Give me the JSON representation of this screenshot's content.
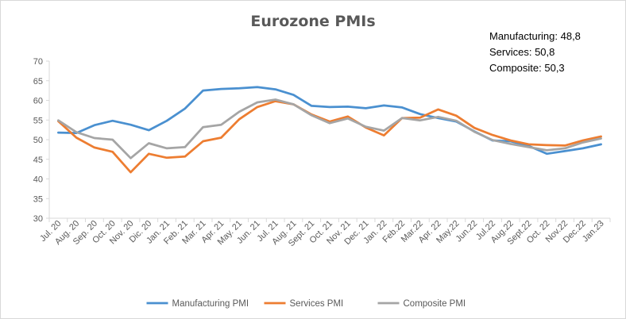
{
  "chart_data": {
    "type": "line",
    "title": "Eurozone PMIs",
    "xlabel": "",
    "ylabel": "",
    "ylim": [
      30,
      70
    ],
    "yticks": [
      30,
      35,
      40,
      45,
      50,
      55,
      60,
      65,
      70
    ],
    "grid": false,
    "legend_position": "bottom",
    "categories": [
      "Jul. 20",
      "Aug. 20",
      "Sep. 20",
      "Oct. 20",
      "Nov. 20",
      "Dic. 20",
      "Jan. 21",
      "Feb. 21",
      "Mar. 21",
      "Apr. 21",
      "May. 21",
      "Jun. 21",
      "Jul. 21",
      "Aug. 21",
      "Sept. 21",
      "Oct. 21",
      "Nov. 21",
      "Dec. 21",
      "Jan. 22",
      "Feb.22",
      "Mar.22",
      "Apr. 22",
      "May.22",
      "Jun.22",
      "Jul.22",
      "Aug.22",
      "Sept.22",
      "Oct. 22",
      "Nov.22",
      "Dec.22",
      "Jan.23"
    ],
    "series": [
      {
        "name": "Manufacturing PMI",
        "color": "#4a90d0",
        "values": [
          51.8,
          51.7,
          53.7,
          54.8,
          53.8,
          52.4,
          54.8,
          57.9,
          62.5,
          62.9,
          63.1,
          63.4,
          62.8,
          61.4,
          58.6,
          58.3,
          58.4,
          58.0,
          58.7,
          58.2,
          56.5,
          55.5,
          54.6,
          52.1,
          49.8,
          49.6,
          48.4,
          46.4,
          47.1,
          47.8,
          48.8
        ]
      },
      {
        "name": "Services PMI",
        "color": "#ed7d31",
        "values": [
          54.7,
          50.5,
          48.0,
          46.9,
          41.7,
          46.4,
          45.4,
          45.7,
          49.6,
          50.5,
          55.2,
          58.3,
          59.8,
          59.0,
          56.4,
          54.6,
          55.9,
          53.1,
          51.1,
          55.5,
          55.6,
          57.7,
          56.1,
          53.0,
          51.2,
          49.8,
          48.8,
          48.6,
          48.5,
          49.8,
          50.8
        ]
      },
      {
        "name": "Composite PMI",
        "color": "#a5a5a5",
        "values": [
          54.9,
          51.9,
          50.4,
          50.0,
          45.3,
          49.1,
          47.8,
          48.1,
          53.2,
          53.8,
          57.1,
          59.5,
          60.2,
          59.0,
          56.2,
          54.2,
          55.4,
          53.3,
          52.3,
          55.5,
          54.9,
          55.8,
          54.8,
          52.0,
          49.9,
          48.9,
          48.1,
          47.3,
          47.8,
          49.3,
          50.3
        ]
      }
    ],
    "annotations": [
      "Manufacturing: 48,8",
      "Services: 50,8",
      "Composite: 50,3"
    ]
  }
}
